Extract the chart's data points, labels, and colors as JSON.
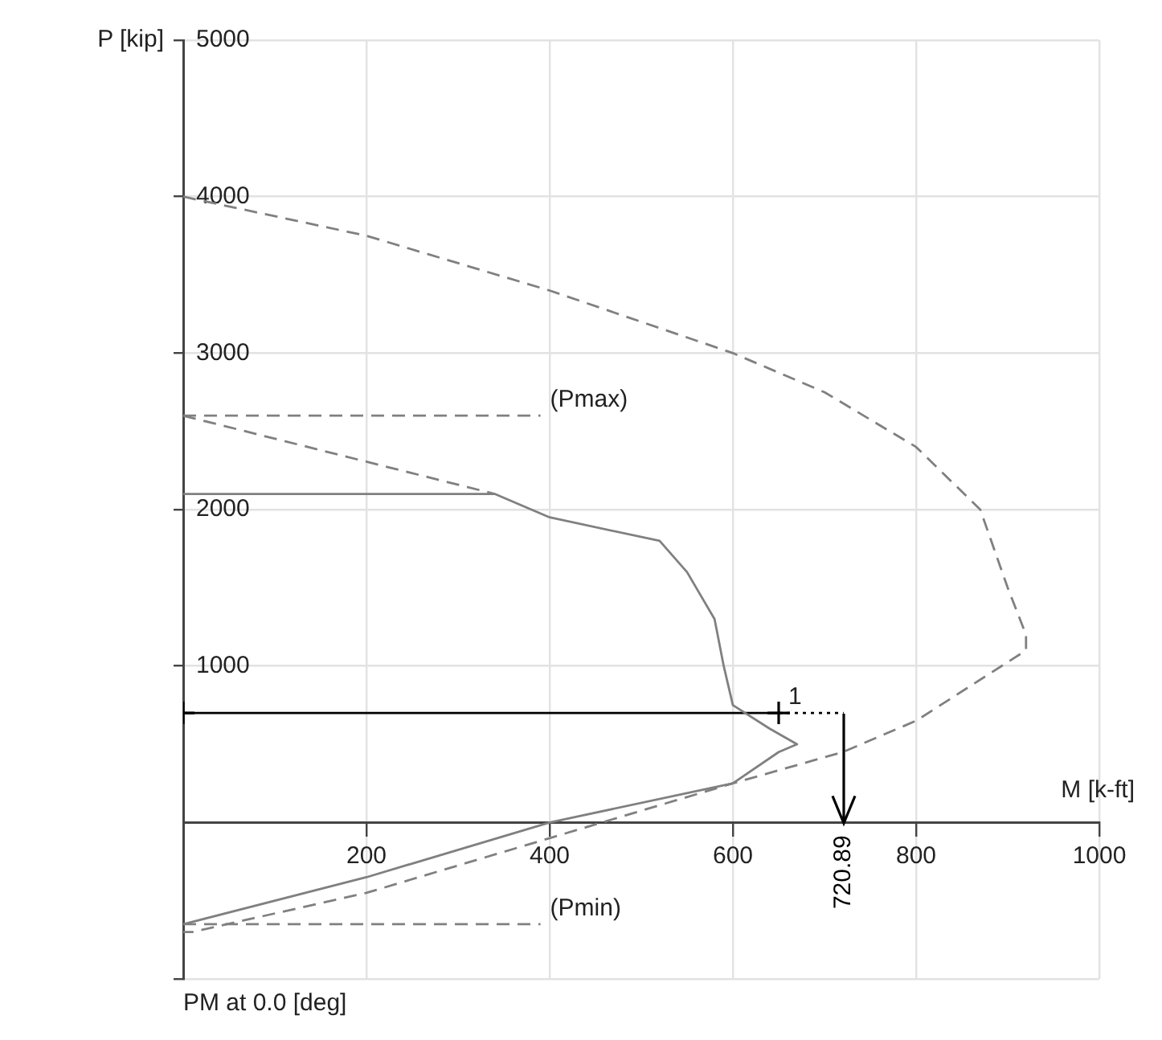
{
  "chart_data": {
    "type": "line",
    "title": "PM at 0.0 [deg]",
    "xlabel": "M [k-ft]",
    "ylabel": "P [kip]",
    "xlim": [
      0,
      1000
    ],
    "ylim": [
      -1000,
      5000
    ],
    "xticks": [
      200,
      400,
      600,
      800,
      1000
    ],
    "yticks": [
      {
        "value": -1000,
        "label": null
      },
      1000,
      2000,
      3000,
      4000,
      5000
    ],
    "grid": true,
    "legend": false,
    "marker": "none",
    "series": [
      {
        "color": "#808080",
        "line_style": "dashed",
        "x": [
          0,
          200,
          400,
          600,
          700,
          800,
          870,
          900,
          920,
          920,
          800,
          720,
          600,
          400,
          200,
          10,
          0
        ],
        "values": [
          4000,
          3750,
          3400,
          3000,
          2750,
          2400,
          2000,
          1500,
          1200,
          1100,
          650,
          450,
          250,
          -100,
          -450,
          -700,
          -700
        ]
      },
      {
        "color": "#808080",
        "line_style": "solid",
        "x": [
          0,
          340,
          400,
          520,
          550,
          580,
          590,
          600,
          640,
          670,
          650,
          600,
          400,
          200,
          0
        ],
        "values": [
          2100,
          2100,
          1950,
          1800,
          1600,
          1300,
          1000,
          750,
          600,
          500,
          450,
          250,
          0,
          -350,
          -650
        ]
      },
      {
        "color": "#808080",
        "line_style": "dashed",
        "x": [
          0,
          340
        ],
        "values": [
          2600,
          2100
        ]
      },
      {
        "name": "(Pmax)",
        "color": "#808080",
        "line_style": "dashed",
        "x": [
          0,
          390
        ],
        "values": [
          2600,
          2600
        ]
      },
      {
        "name": "(Pmin)",
        "color": "#808080",
        "line_style": "dashed",
        "x": [
          0,
          390
        ],
        "values": [
          -650,
          -650
        ]
      },
      {
        "name": "1",
        "color": "#000000",
        "line_style": "solid",
        "marker": "cross",
        "x": [
          0,
          650
        ],
        "values": [
          700,
          700
        ]
      },
      {
        "color": "#000000",
        "line_style": "dotted",
        "x": [
          650,
          720.89
        ],
        "values": [
          700,
          700
        ]
      }
    ],
    "annotations": [
      {
        "text": "720.89",
        "x": 720.89,
        "y": 700
      }
    ]
  }
}
